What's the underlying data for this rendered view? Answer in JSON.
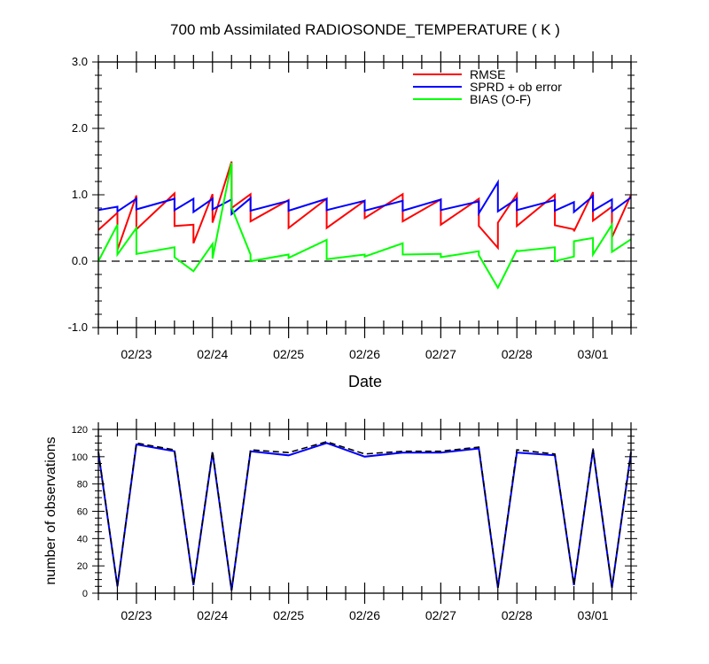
{
  "chart_data": [
    {
      "type": "line",
      "title": "700 mb Assimilated RADIOSONDE_TEMPERATURE ( K )",
      "xlabel": "Date",
      "ylabel": "",
      "xlim": [
        "2011-02-22 12:00",
        "2011-03-01 12:00"
      ],
      "ylim": [
        -1.0,
        3.0
      ],
      "yticks": [
        "-1.0",
        "0.0",
        "1.0",
        "2.0",
        "3.0"
      ],
      "xticks": [
        "02/23",
        "02/24",
        "02/25",
        "02/26",
        "02/27",
        "02/28",
        "03/01"
      ],
      "legend": "top-right",
      "zero_line": "dashed",
      "series": [
        {
          "name": "RMSE",
          "color": "#ff0000",
          "points": [
            [
              "2011-02-22 12:00",
              0.47
            ],
            [
              "2011-02-22 18:00",
              0.73
            ],
            [
              "2011-02-22 18:00",
              0.17
            ],
            [
              "2011-02-23 00:00",
              0.99
            ],
            [
              "2011-02-23 00:00",
              0.48
            ],
            [
              "2011-02-23 12:00",
              1.02
            ],
            [
              "2011-02-23 12:00",
              0.53
            ],
            [
              "2011-02-23 18:00",
              0.55
            ],
            [
              "2011-02-23 18:00",
              0.27
            ],
            [
              "2011-02-24 00:00",
              1.01
            ],
            [
              "2011-02-24 00:00",
              0.58
            ],
            [
              "2011-02-24 06:00",
              1.5
            ],
            [
              "2011-02-24 06:00",
              0.8
            ],
            [
              "2011-02-24 12:00",
              1.01
            ],
            [
              "2011-02-24 12:00",
              0.6
            ],
            [
              "2011-02-25 00:00",
              0.92
            ],
            [
              "2011-02-25 00:00",
              0.5
            ],
            [
              "2011-02-25 12:00",
              0.94
            ],
            [
              "2011-02-25 12:00",
              0.5
            ],
            [
              "2011-02-26 00:00",
              0.91
            ],
            [
              "2011-02-26 00:00",
              0.65
            ],
            [
              "2011-02-26 12:00",
              1.01
            ],
            [
              "2011-02-26 12:00",
              0.6
            ],
            [
              "2011-02-27 00:00",
              0.93
            ],
            [
              "2011-02-27 00:00",
              0.55
            ],
            [
              "2011-02-27 12:00",
              0.94
            ],
            [
              "2011-02-27 12:00",
              0.53
            ],
            [
              "2011-02-27 18:00",
              0.2
            ],
            [
              "2011-02-27 18:00",
              0.58
            ],
            [
              "2011-02-28 00:00",
              1.01
            ],
            [
              "2011-02-28 00:00",
              0.53
            ],
            [
              "2011-02-28 12:00",
              1.0
            ],
            [
              "2011-02-28 12:00",
              0.54
            ],
            [
              "2011-02-28 18:00",
              0.48
            ],
            [
              "2011-02-28 18:00",
              0.45
            ],
            [
              "2011-03-01 00:00",
              1.04
            ],
            [
              "2011-03-01 00:00",
              0.61
            ],
            [
              "2011-03-01 06:00",
              0.82
            ],
            [
              "2011-03-01 06:00",
              0.36
            ],
            [
              "2011-03-01 12:00",
              1.0
            ]
          ]
        },
        {
          "name": "SPRD + ob error",
          "color": "#0000ff",
          "points": [
            [
              "2011-02-22 12:00",
              0.77
            ],
            [
              "2011-02-22 18:00",
              0.82
            ],
            [
              "2011-02-22 18:00",
              0.75
            ],
            [
              "2011-02-23 00:00",
              0.94
            ],
            [
              "2011-02-23 00:00",
              0.78
            ],
            [
              "2011-02-23 12:00",
              0.94
            ],
            [
              "2011-02-23 12:00",
              0.77
            ],
            [
              "2011-02-23 18:00",
              0.94
            ],
            [
              "2011-02-23 18:00",
              0.74
            ],
            [
              "2011-02-24 00:00",
              0.94
            ],
            [
              "2011-02-24 00:00",
              0.78
            ],
            [
              "2011-02-24 06:00",
              0.93
            ],
            [
              "2011-02-24 06:00",
              0.71
            ],
            [
              "2011-02-24 12:00",
              0.95
            ],
            [
              "2011-02-24 12:00",
              0.76
            ],
            [
              "2011-02-25 00:00",
              0.91
            ],
            [
              "2011-02-25 00:00",
              0.76
            ],
            [
              "2011-02-25 12:00",
              0.94
            ],
            [
              "2011-02-25 12:00",
              0.77
            ],
            [
              "2011-02-26 00:00",
              0.91
            ],
            [
              "2011-02-26 00:00",
              0.76
            ],
            [
              "2011-02-26 12:00",
              0.91
            ],
            [
              "2011-02-26 12:00",
              0.76
            ],
            [
              "2011-02-27 00:00",
              0.93
            ],
            [
              "2011-02-27 00:00",
              0.77
            ],
            [
              "2011-02-27 12:00",
              0.9
            ],
            [
              "2011-02-27 12:00",
              0.72
            ],
            [
              "2011-02-27 18:00",
              1.19
            ],
            [
              "2011-02-27 18:00",
              0.75
            ],
            [
              "2011-02-28 00:00",
              0.94
            ],
            [
              "2011-02-28 00:00",
              0.77
            ],
            [
              "2011-02-28 12:00",
              0.92
            ],
            [
              "2011-02-28 12:00",
              0.76
            ],
            [
              "2011-02-28 18:00",
              0.89
            ],
            [
              "2011-02-28 18:00",
              0.74
            ],
            [
              "2011-03-01 00:00",
              0.98
            ],
            [
              "2011-03-01 00:00",
              0.76
            ],
            [
              "2011-03-01 06:00",
              0.93
            ],
            [
              "2011-03-01 06:00",
              0.75
            ],
            [
              "2011-03-01 12:00",
              0.96
            ]
          ]
        },
        {
          "name": "BIAS (O-F)",
          "color": "#00ff00",
          "points": [
            [
              "2011-02-22 12:00",
              0.0
            ],
            [
              "2011-02-22 18:00",
              0.55
            ],
            [
              "2011-02-22 18:00",
              0.1
            ],
            [
              "2011-02-23 00:00",
              0.5
            ],
            [
              "2011-02-23 00:00",
              0.11
            ],
            [
              "2011-02-23 12:00",
              0.21
            ],
            [
              "2011-02-23 12:00",
              0.06
            ],
            [
              "2011-02-23 18:00",
              -0.15
            ],
            [
              "2011-02-24 00:00",
              0.26
            ],
            [
              "2011-02-24 00:00",
              0.04
            ],
            [
              "2011-02-24 06:00",
              1.48
            ],
            [
              "2011-02-24 06:00",
              0.81
            ],
            [
              "2011-02-24 12:00",
              0.1
            ],
            [
              "2011-02-24 12:00",
              0.0
            ],
            [
              "2011-02-25 00:00",
              0.1
            ],
            [
              "2011-02-25 00:00",
              0.05
            ],
            [
              "2011-02-25 12:00",
              0.32
            ],
            [
              "2011-02-25 12:00",
              0.03
            ],
            [
              "2011-02-26 00:00",
              0.1
            ],
            [
              "2011-02-26 00:00",
              0.07
            ],
            [
              "2011-02-26 12:00",
              0.27
            ],
            [
              "2011-02-26 12:00",
              0.1
            ],
            [
              "2011-02-27 00:00",
              0.11
            ],
            [
              "2011-02-27 00:00",
              0.06
            ],
            [
              "2011-02-27 12:00",
              0.15
            ],
            [
              "2011-02-27 12:00",
              0.09
            ],
            [
              "2011-02-27 18:00",
              -0.4
            ],
            [
              "2011-02-28 00:00",
              0.17
            ],
            [
              "2011-02-28 00:00",
              0.15
            ],
            [
              "2011-02-28 12:00",
              0.21
            ],
            [
              "2011-02-28 12:00",
              0.0
            ],
            [
              "2011-02-28 18:00",
              0.07
            ],
            [
              "2011-02-28 18:00",
              0.3
            ],
            [
              "2011-03-01 00:00",
              0.35
            ],
            [
              "2011-03-01 00:00",
              0.1
            ],
            [
              "2011-03-01 06:00",
              0.55
            ],
            [
              "2011-03-01 06:00",
              0.14
            ],
            [
              "2011-03-01 12:00",
              0.33
            ]
          ]
        }
      ]
    },
    {
      "type": "line",
      "title": "",
      "xlabel": "",
      "ylabel": "number of observations",
      "xlim": [
        "2011-02-22 12:00",
        "2011-03-01 12:00"
      ],
      "ylim": [
        0,
        120
      ],
      "yticks": [
        "0",
        "20",
        "40",
        "60",
        "80",
        "100",
        "120"
      ],
      "xticks": [
        "02/23",
        "02/24",
        "02/25",
        "02/26",
        "02/27",
        "02/28",
        "03/01"
      ],
      "series": [
        {
          "style": "solid",
          "color": "#0000ff",
          "points": [
            [
              "2011-02-22 12:00",
              103
            ],
            [
              "2011-02-22 18:00",
              5
            ],
            [
              "2011-02-23 00:00",
              109
            ],
            [
              "2011-02-23 12:00",
              104
            ],
            [
              "2011-02-23 18:00",
              6
            ],
            [
              "2011-02-24 00:00",
              103
            ],
            [
              "2011-02-24 06:00",
              2
            ],
            [
              "2011-02-24 12:00",
              104
            ],
            [
              "2011-02-25 00:00",
              101
            ],
            [
              "2011-02-25 12:00",
              110
            ],
            [
              "2011-02-26 00:00",
              100
            ],
            [
              "2011-02-26 12:00",
              103
            ],
            [
              "2011-02-27 00:00",
              103
            ],
            [
              "2011-02-27 12:00",
              106
            ],
            [
              "2011-02-27 18:00",
              4
            ],
            [
              "2011-02-28 00:00",
              103
            ],
            [
              "2011-02-28 12:00",
              101
            ],
            [
              "2011-02-28 18:00",
              6
            ],
            [
              "2011-03-01 00:00",
              105
            ],
            [
              "2011-03-01 06:00",
              4
            ],
            [
              "2011-03-01 12:00",
              103
            ]
          ]
        },
        {
          "style": "dashed",
          "color": "#000000",
          "points": [
            [
              "2011-02-22 12:00",
              104
            ],
            [
              "2011-02-22 18:00",
              5
            ],
            [
              "2011-02-23 00:00",
              110
            ],
            [
              "2011-02-23 12:00",
              105
            ],
            [
              "2011-02-23 18:00",
              6
            ],
            [
              "2011-02-24 00:00",
              104
            ],
            [
              "2011-02-24 06:00",
              2
            ],
            [
              "2011-02-24 12:00",
              105
            ],
            [
              "2011-02-25 00:00",
              103
            ],
            [
              "2011-02-25 12:00",
              111
            ],
            [
              "2011-02-26 00:00",
              102
            ],
            [
              "2011-02-26 12:00",
              104
            ],
            [
              "2011-02-27 00:00",
              104
            ],
            [
              "2011-02-27 12:00",
              107
            ],
            [
              "2011-02-27 18:00",
              4
            ],
            [
              "2011-02-28 00:00",
              105
            ],
            [
              "2011-02-28 12:00",
              102
            ],
            [
              "2011-02-28 18:00",
              6
            ],
            [
              "2011-03-01 00:00",
              106
            ],
            [
              "2011-03-01 06:00",
              4
            ],
            [
              "2011-03-01 12:00",
              104
            ]
          ]
        }
      ]
    }
  ]
}
